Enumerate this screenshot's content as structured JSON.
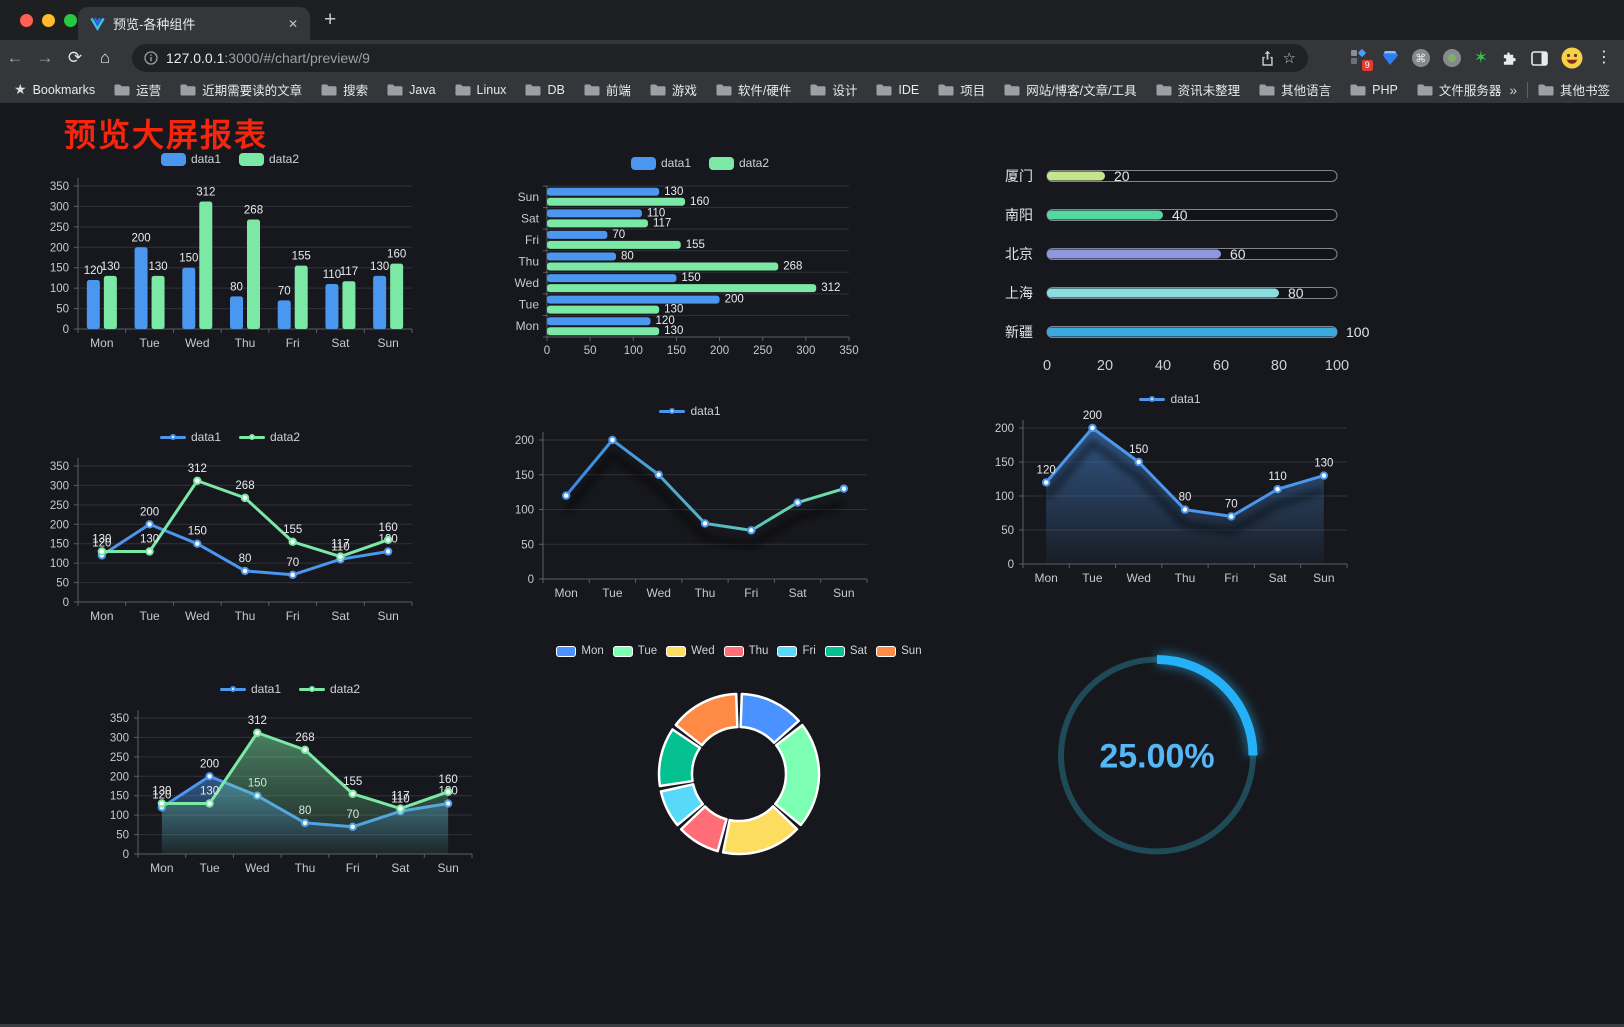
{
  "browser": {
    "tab_title": "预览-各种组件",
    "url_host": "127.0.0.1",
    "url_rest": ":3000/#/chart/preview/9",
    "bookmarks_label": "Bookmarks",
    "bookmarks": [
      "运营",
      "近期需要读的文章",
      "搜索",
      "Java",
      "Linux",
      "DB",
      "前端",
      "游戏",
      "软件/硬件",
      "设计",
      "IDE",
      "项目",
      "网站/博客/文章/工具",
      "资讯未整理",
      "其他语言",
      "PHP",
      "文件服务器"
    ],
    "other_bookmarks_label": "其他书签",
    "extension_badge": "9"
  },
  "page": {
    "title": "预览大屏报表",
    "title_color": "#f5260d",
    "background": "#17181d"
  },
  "chart_data": [
    {
      "id": "bar-grouped",
      "type": "bar",
      "categories": [
        "Mon",
        "Tue",
        "Wed",
        "Thu",
        "Fri",
        "Sat",
        "Sun"
      ],
      "series": [
        {
          "name": "data1",
          "color": "#4b96ee",
          "values": [
            120,
            200,
            150,
            80,
            70,
            110,
            130
          ]
        },
        {
          "name": "data2",
          "color": "#7ce8a5",
          "values": [
            130,
            130,
            312,
            268,
            155,
            117,
            160
          ]
        }
      ],
      "ylim": [
        0,
        350
      ],
      "ytick": 50,
      "show_labels": true,
      "legend_position": "top",
      "grid": true
    },
    {
      "id": "bar-horizontal",
      "type": "hbar",
      "categories": [
        "Mon",
        "Tue",
        "Wed",
        "Thu",
        "Fri",
        "Sat",
        "Sun"
      ],
      "series": [
        {
          "name": "data1",
          "color": "#4b96ee",
          "values": [
            120,
            200,
            150,
            80,
            70,
            110,
            130
          ]
        },
        {
          "name": "data2",
          "color": "#7ce8a5",
          "values": [
            130,
            130,
            312,
            268,
            155,
            117,
            160
          ]
        }
      ],
      "xlim": [
        0,
        350
      ],
      "xtick": 50,
      "show_labels": true,
      "legend_position": "top",
      "grid": true
    },
    {
      "id": "progress-list",
      "type": "progress",
      "rows": [
        {
          "label": "厦门",
          "value": 20,
          "color": "#c5e48c"
        },
        {
          "label": "南阳",
          "value": 40,
          "color": "#55d7a2"
        },
        {
          "label": "北京",
          "value": 60,
          "color": "#9097e0"
        },
        {
          "label": "上海",
          "value": 80,
          "color": "#8adee2"
        },
        {
          "label": "新疆",
          "value": 100,
          "color": "#3ba8e0"
        }
      ],
      "xlim": [
        0,
        100
      ],
      "xticks": [
        0,
        20,
        40,
        60,
        80,
        100
      ]
    },
    {
      "id": "line-dual",
      "type": "line",
      "categories": [
        "Mon",
        "Tue",
        "Wed",
        "Thu",
        "Fri",
        "Sat",
        "Sun"
      ],
      "series": [
        {
          "name": "data1",
          "color": "#4b96ee",
          "values": [
            120,
            200,
            150,
            80,
            70,
            110,
            130
          ]
        },
        {
          "name": "data2",
          "color": "#7ce8a5",
          "values": [
            130,
            130,
            312,
            268,
            155,
            117,
            160
          ]
        }
      ],
      "ylim": [
        0,
        350
      ],
      "ytick": 50,
      "show_labels": true,
      "legend_position": "top",
      "grid": true
    },
    {
      "id": "line-gradient",
      "type": "line",
      "categories": [
        "Mon",
        "Tue",
        "Wed",
        "Thu",
        "Fri",
        "Sat",
        "Sun"
      ],
      "series": [
        {
          "name": "data1",
          "color": "#4b96ee",
          "gradient": [
            "#3a86e8",
            "#6fe3a3"
          ],
          "values": [
            120,
            200,
            150,
            80,
            70,
            110,
            130
          ]
        }
      ],
      "ylim": [
        0,
        200
      ],
      "ytick": 50,
      "show_labels": false,
      "shadow": true,
      "legend_position": "top",
      "grid": true
    },
    {
      "id": "line-area",
      "type": "line",
      "categories": [
        "Mon",
        "Tue",
        "Wed",
        "Thu",
        "Fri",
        "Sat",
        "Sun"
      ],
      "series": [
        {
          "name": "data1",
          "color": "#4b96ee",
          "values": [
            120,
            200,
            150,
            80,
            70,
            110,
            130
          ],
          "area": true
        }
      ],
      "ylim": [
        0,
        200
      ],
      "ytick": 50,
      "show_labels": true,
      "shadow": true,
      "legend_position": "top",
      "grid": true
    },
    {
      "id": "line-area-dual",
      "type": "line",
      "categories": [
        "Mon",
        "Tue",
        "Wed",
        "Thu",
        "Fri",
        "Sat",
        "Sun"
      ],
      "series": [
        {
          "name": "data1",
          "color": "#4b96ee",
          "values": [
            120,
            200,
            150,
            80,
            70,
            110,
            130
          ],
          "area": true
        },
        {
          "name": "data2",
          "color": "#7ce8a5",
          "values": [
            130,
            130,
            312,
            268,
            155,
            117,
            160
          ],
          "area": true
        }
      ],
      "ylim": [
        0,
        350
      ],
      "ytick": 50,
      "show_labels": true,
      "legend_position": "top",
      "grid": true
    },
    {
      "id": "donut",
      "type": "pie",
      "legend_position": "top",
      "items": [
        {
          "label": "Mon",
          "value": 120,
          "color": "#4992ff"
        },
        {
          "label": "Tue",
          "value": 200,
          "color": "#7cffb2"
        },
        {
          "label": "Wed",
          "value": 150,
          "color": "#fddd60"
        },
        {
          "label": "Thu",
          "value": 80,
          "color": "#ff6e76"
        },
        {
          "label": "Fri",
          "value": 70,
          "color": "#58d9f9"
        },
        {
          "label": "Sat",
          "value": 110,
          "color": "#05c091"
        },
        {
          "label": "Sun",
          "value": 130,
          "color": "#ff8a45"
        }
      ]
    },
    {
      "id": "gauge",
      "type": "gauge",
      "percent": 25,
      "label": "25.00%",
      "color": "#25b1f7",
      "track_color": "#1f4b58",
      "text_color": "#55b7f6"
    }
  ]
}
